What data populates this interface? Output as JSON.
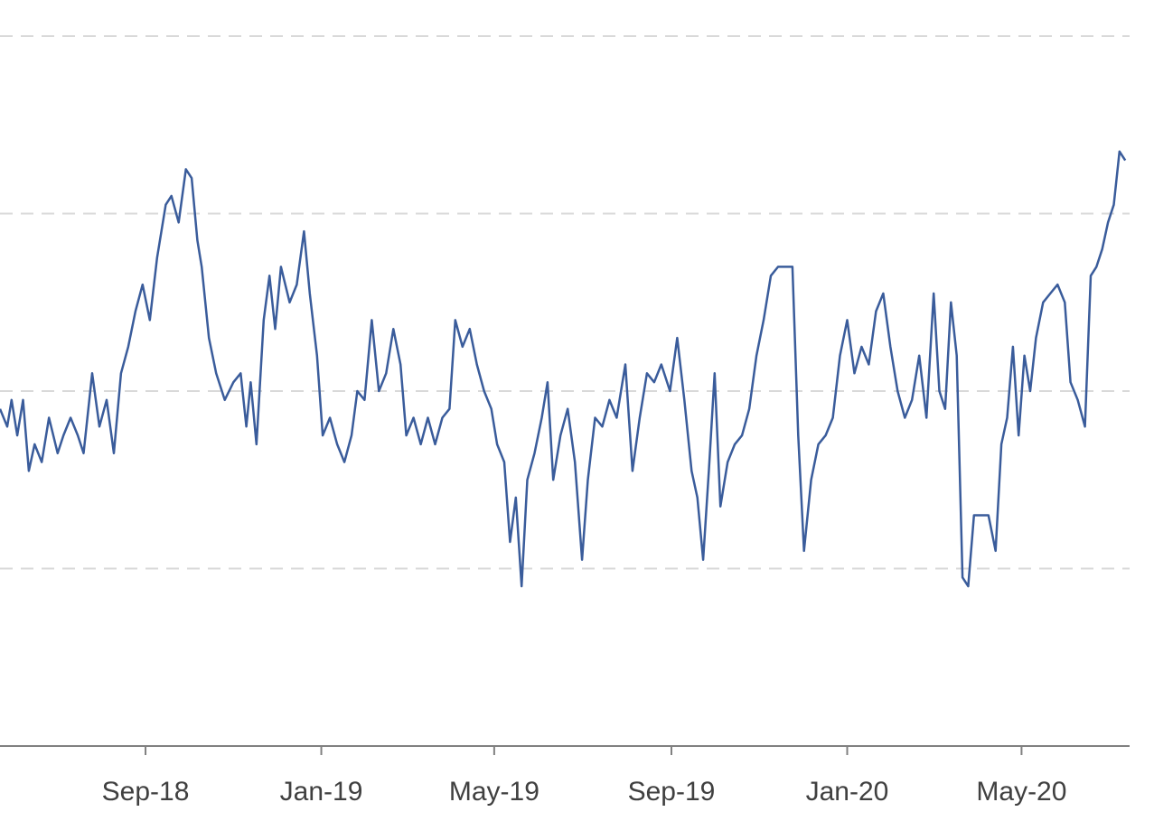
{
  "chart_data": {
    "type": "line",
    "title": "",
    "xlabel": "",
    "ylabel": "",
    "x_tick_labels": [
      "Sep-18",
      "Jan-19",
      "May-19",
      "Sep-19",
      "Jan-20",
      "May-20"
    ],
    "x_range": [
      "2018-05-23",
      "2020-07-15"
    ],
    "y_range": [
      0,
      4
    ],
    "grid": true,
    "legend": "none",
    "series": [
      {
        "color": "#3a5c9b",
        "points": [
          [
            "2018-05-23",
            1.9
          ],
          [
            "2018-05-28",
            1.8
          ],
          [
            "2018-05-31",
            1.95
          ],
          [
            "2018-06-04",
            1.75
          ],
          [
            "2018-06-08",
            1.95
          ],
          [
            "2018-06-12",
            1.55
          ],
          [
            "2018-06-16",
            1.7
          ],
          [
            "2018-06-21",
            1.6
          ],
          [
            "2018-06-26",
            1.85
          ],
          [
            "2018-07-02",
            1.65
          ],
          [
            "2018-07-06",
            1.75
          ],
          [
            "2018-07-11",
            1.85
          ],
          [
            "2018-07-16",
            1.75
          ],
          [
            "2018-07-20",
            1.65
          ],
          [
            "2018-07-26",
            2.1
          ],
          [
            "2018-07-31",
            1.8
          ],
          [
            "2018-08-05",
            1.95
          ],
          [
            "2018-08-10",
            1.65
          ],
          [
            "2018-08-15",
            2.1
          ],
          [
            "2018-08-20",
            2.25
          ],
          [
            "2018-08-25",
            2.45
          ],
          [
            "2018-08-30",
            2.6
          ],
          [
            "2018-09-04",
            2.4
          ],
          [
            "2018-09-09",
            2.75
          ],
          [
            "2018-09-15",
            3.05
          ],
          [
            "2018-09-19",
            3.1
          ],
          [
            "2018-09-24",
            2.95
          ],
          [
            "2018-09-29",
            3.25
          ],
          [
            "2018-10-03",
            3.2
          ],
          [
            "2018-10-07",
            2.85
          ],
          [
            "2018-10-10",
            2.7
          ],
          [
            "2018-10-15",
            2.3
          ],
          [
            "2018-10-20",
            2.1
          ],
          [
            "2018-10-26",
            1.95
          ],
          [
            "2018-11-01",
            2.05
          ],
          [
            "2018-11-06",
            2.1
          ],
          [
            "2018-11-10",
            1.8
          ],
          [
            "2018-11-13",
            2.05
          ],
          [
            "2018-11-17",
            1.7
          ],
          [
            "2018-11-22",
            2.4
          ],
          [
            "2018-11-26",
            2.65
          ],
          [
            "2018-11-30",
            2.35
          ],
          [
            "2018-12-04",
            2.7
          ],
          [
            "2018-12-10",
            2.5
          ],
          [
            "2018-12-15",
            2.6
          ],
          [
            "2018-12-20",
            2.9
          ],
          [
            "2018-12-24",
            2.55
          ],
          [
            "2018-12-29",
            2.2
          ],
          [
            "2019-01-02",
            1.75
          ],
          [
            "2019-01-07",
            1.85
          ],
          [
            "2019-01-12",
            1.7
          ],
          [
            "2019-01-17",
            1.6
          ],
          [
            "2019-01-22",
            1.75
          ],
          [
            "2019-01-26",
            2.0
          ],
          [
            "2019-01-31",
            1.95
          ],
          [
            "2019-02-05",
            2.4
          ],
          [
            "2019-02-10",
            2.0
          ],
          [
            "2019-02-15",
            2.1
          ],
          [
            "2019-02-20",
            2.35
          ],
          [
            "2019-02-25",
            2.15
          ],
          [
            "2019-03-01",
            1.75
          ],
          [
            "2019-03-06",
            1.85
          ],
          [
            "2019-03-11",
            1.7
          ],
          [
            "2019-03-16",
            1.85
          ],
          [
            "2019-03-21",
            1.7
          ],
          [
            "2019-03-26",
            1.85
          ],
          [
            "2019-03-31",
            1.9
          ],
          [
            "2019-04-04",
            2.4
          ],
          [
            "2019-04-09",
            2.25
          ],
          [
            "2019-04-14",
            2.35
          ],
          [
            "2019-04-19",
            2.15
          ],
          [
            "2019-04-24",
            2.0
          ],
          [
            "2019-04-29",
            1.9
          ],
          [
            "2019-05-03",
            1.7
          ],
          [
            "2019-05-08",
            1.6
          ],
          [
            "2019-05-12",
            1.15
          ],
          [
            "2019-05-16",
            1.4
          ],
          [
            "2019-05-20",
            0.9
          ],
          [
            "2019-05-24",
            1.5
          ],
          [
            "2019-05-29",
            1.65
          ],
          [
            "2019-06-03",
            1.85
          ],
          [
            "2019-06-07",
            2.05
          ],
          [
            "2019-06-11",
            1.5
          ],
          [
            "2019-06-16",
            1.75
          ],
          [
            "2019-06-21",
            1.9
          ],
          [
            "2019-06-26",
            1.6
          ],
          [
            "2019-07-01",
            1.05
          ],
          [
            "2019-07-05",
            1.5
          ],
          [
            "2019-07-10",
            1.85
          ],
          [
            "2019-07-15",
            1.8
          ],
          [
            "2019-07-20",
            1.95
          ],
          [
            "2019-07-25",
            1.85
          ],
          [
            "2019-07-31",
            2.15
          ],
          [
            "2019-08-05",
            1.55
          ],
          [
            "2019-08-10",
            1.85
          ],
          [
            "2019-08-15",
            2.1
          ],
          [
            "2019-08-20",
            2.05
          ],
          [
            "2019-08-25",
            2.15
          ],
          [
            "2019-08-31",
            2.0
          ],
          [
            "2019-09-05",
            2.3
          ],
          [
            "2019-09-10",
            1.95
          ],
          [
            "2019-09-15",
            1.55
          ],
          [
            "2019-09-19",
            1.4
          ],
          [
            "2019-09-23",
            1.05
          ],
          [
            "2019-09-27",
            1.55
          ],
          [
            "2019-10-01",
            2.1
          ],
          [
            "2019-10-05",
            1.35
          ],
          [
            "2019-10-10",
            1.6
          ],
          [
            "2019-10-15",
            1.7
          ],
          [
            "2019-10-20",
            1.75
          ],
          [
            "2019-10-25",
            1.9
          ],
          [
            "2019-10-30",
            2.2
          ],
          [
            "2019-11-04",
            2.4
          ],
          [
            "2019-11-09",
            2.65
          ],
          [
            "2019-11-14",
            2.7
          ],
          [
            "2019-11-19",
            2.7
          ],
          [
            "2019-11-24",
            2.7
          ],
          [
            "2019-11-28",
            1.75
          ],
          [
            "2019-12-02",
            1.1
          ],
          [
            "2019-12-07",
            1.5
          ],
          [
            "2019-12-12",
            1.7
          ],
          [
            "2019-12-17",
            1.75
          ],
          [
            "2019-12-22",
            1.85
          ],
          [
            "2019-12-27",
            2.2
          ],
          [
            "2020-01-01",
            2.4
          ],
          [
            "2020-01-06",
            2.1
          ],
          [
            "2020-01-11",
            2.25
          ],
          [
            "2020-01-16",
            2.15
          ],
          [
            "2020-01-21",
            2.45
          ],
          [
            "2020-01-26",
            2.55
          ],
          [
            "2020-01-31",
            2.25
          ],
          [
            "2020-02-05",
            2.0
          ],
          [
            "2020-02-10",
            1.85
          ],
          [
            "2020-02-15",
            1.95
          ],
          [
            "2020-02-20",
            2.2
          ],
          [
            "2020-02-25",
            1.85
          ],
          [
            "2020-03-01",
            2.55
          ],
          [
            "2020-03-05",
            2.0
          ],
          [
            "2020-03-09",
            1.9
          ],
          [
            "2020-03-13",
            2.5
          ],
          [
            "2020-03-17",
            2.2
          ],
          [
            "2020-03-21",
            0.95
          ],
          [
            "2020-03-25",
            0.9
          ],
          [
            "2020-03-29",
            1.3
          ],
          [
            "2020-04-03",
            1.3
          ],
          [
            "2020-04-08",
            1.3
          ],
          [
            "2020-04-13",
            1.1
          ],
          [
            "2020-04-17",
            1.7
          ],
          [
            "2020-04-21",
            1.85
          ],
          [
            "2020-04-25",
            2.25
          ],
          [
            "2020-04-29",
            1.75
          ],
          [
            "2020-05-03",
            2.2
          ],
          [
            "2020-05-07",
            2.0
          ],
          [
            "2020-05-11",
            2.3
          ],
          [
            "2020-05-16",
            2.5
          ],
          [
            "2020-05-21",
            2.55
          ],
          [
            "2020-05-26",
            2.6
          ],
          [
            "2020-05-31",
            2.5
          ],
          [
            "2020-06-04",
            2.05
          ],
          [
            "2020-06-09",
            1.95
          ],
          [
            "2020-06-14",
            1.8
          ],
          [
            "2020-06-18",
            2.65
          ],
          [
            "2020-06-22",
            2.7
          ],
          [
            "2020-06-26",
            2.8
          ],
          [
            "2020-06-30",
            2.95
          ],
          [
            "2020-07-04",
            3.05
          ],
          [
            "2020-07-08",
            3.35
          ],
          [
            "2020-07-12",
            3.3
          ]
        ]
      }
    ]
  }
}
